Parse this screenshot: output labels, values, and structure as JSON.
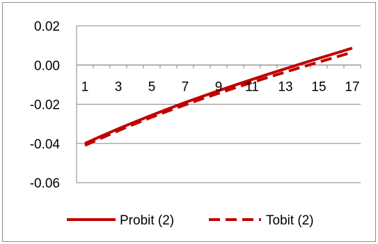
{
  "chart_data": {
    "type": "line",
    "title": "",
    "xlabel": "",
    "ylabel": "",
    "x": [
      1,
      2,
      3,
      4,
      5,
      6,
      7,
      8,
      9,
      10,
      11,
      12,
      13,
      14,
      15,
      16,
      17
    ],
    "x_tick_labels": [
      "1",
      "3",
      "5",
      "7",
      "9",
      "11",
      "13",
      "15",
      "17"
    ],
    "y_tick_labels": [
      "0.02",
      "0.00",
      "-0.02",
      "-0.04",
      "-0.06"
    ],
    "ylim": [
      -0.06,
      0.02
    ],
    "y_gridlines": true,
    "legend_position": "bottom",
    "series": [
      {
        "name": "Probit (2)",
        "line_style": "solid",
        "color": "#c00000",
        "values": [
          -0.04,
          -0.0362,
          -0.0325,
          -0.029,
          -0.0256,
          -0.0223,
          -0.0191,
          -0.0161,
          -0.0131,
          -0.0102,
          -0.0074,
          -0.0046,
          -0.0019,
          0.0008,
          0.0034,
          0.006,
          0.0086
        ]
      },
      {
        "name": "Tobit (2)",
        "line_style": "dashed",
        "color": "#c00000",
        "values": [
          -0.041,
          -0.0372,
          -0.0335,
          -0.03,
          -0.0266,
          -0.0234,
          -0.0203,
          -0.0173,
          -0.0144,
          -0.0116,
          -0.0089,
          -0.0062,
          -0.0036,
          -0.001,
          0.0015,
          0.004,
          0.0065
        ]
      }
    ]
  }
}
